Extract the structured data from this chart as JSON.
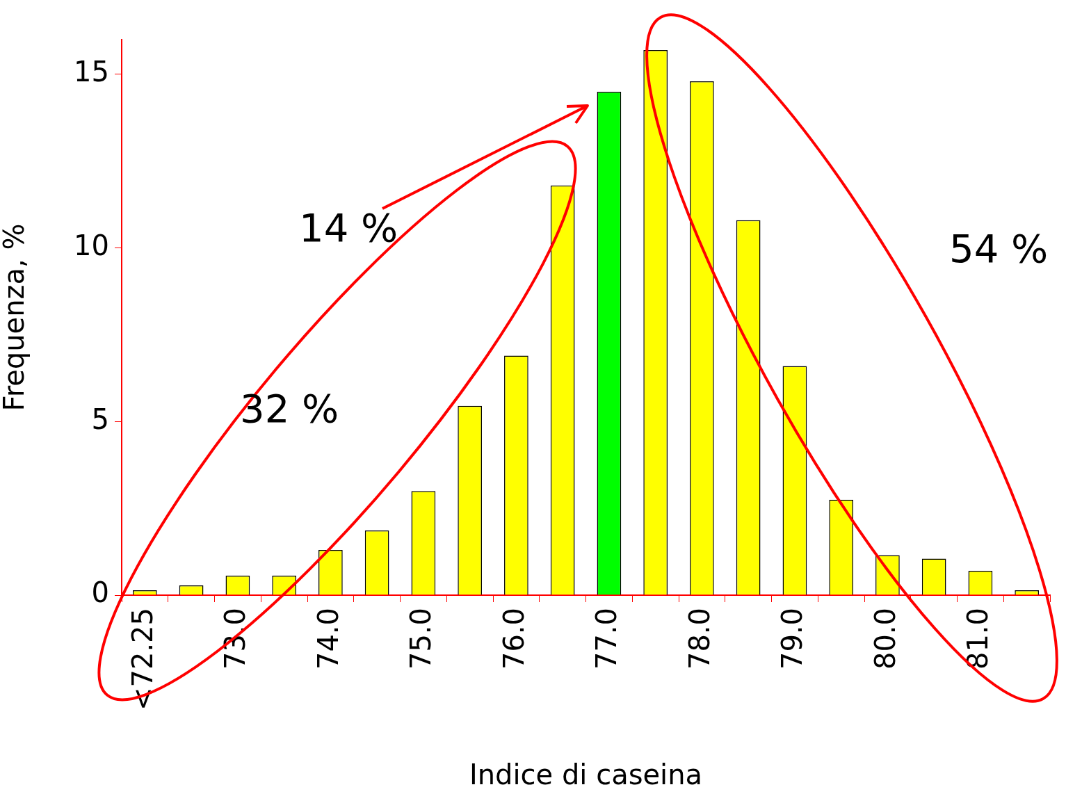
{
  "chart_data": {
    "type": "bar",
    "xlabel": "Indice di caseina",
    "ylabel": "Frequenza, %",
    "categories": [
      "<72.25",
      null,
      "73.0",
      null,
      "74.0",
      null,
      "75.0",
      null,
      "76.0",
      null,
      "77.0",
      null,
      "78.0",
      null,
      "79.0",
      null,
      "80.0",
      null,
      "81.0",
      null
    ],
    "values": [
      0.14,
      0.28,
      0.56,
      0.56,
      1.3,
      1.86,
      3.0,
      5.45,
      6.9,
      11.8,
      14.5,
      15.7,
      14.8,
      10.8,
      6.6,
      2.75,
      1.15,
      1.05,
      0.7,
      0.14
    ],
    "colors": [
      "#ffff00",
      "#ffff00",
      "#ffff00",
      "#ffff00",
      "#ffff00",
      "#ffff00",
      "#ffff00",
      "#ffff00",
      "#ffff00",
      "#ffff00",
      "#00ff00",
      "#ffff00",
      "#ffff00",
      "#ffff00",
      "#ffff00",
      "#ffff00",
      "#ffff00",
      "#ffff00",
      "#ffff00",
      "#ffff00"
    ],
    "ylim": [
      0,
      16
    ],
    "yticks": [
      0,
      5,
      10,
      15
    ],
    "grid": false,
    "legend": false,
    "annotations": [
      "14 %",
      "32 %",
      "54 %"
    ]
  }
}
